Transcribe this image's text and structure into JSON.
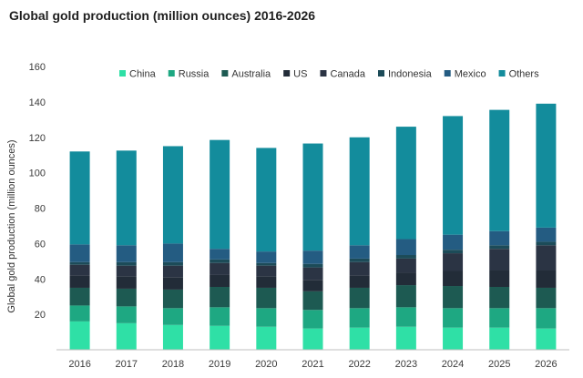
{
  "chart_data": {
    "type": "bar",
    "stacked": true,
    "title": "Global gold production (million ounces) 2016-2026",
    "xlabel": "",
    "ylabel": "Global gold production (million ounces)",
    "ylim": [
      0,
      160
    ],
    "yticks": [
      20,
      40,
      60,
      80,
      100,
      120,
      140,
      160
    ],
    "grid": false,
    "legend_position": "top",
    "categories": [
      "2016",
      "2017",
      "2018",
      "2019",
      "2020",
      "2021",
      "2022",
      "2023",
      "2024",
      "2025",
      "2026"
    ],
    "series": [
      {
        "name": "China",
        "color": "#2fe0a6",
        "values": [
          16,
          15,
          14,
          13.5,
          13,
          12,
          12.5,
          13,
          12.5,
          12.5,
          12
        ]
      },
      {
        "name": "Russia",
        "color": "#1ea882",
        "values": [
          9,
          9.5,
          9.5,
          10.5,
          10.5,
          10.5,
          11,
          11,
          11,
          11,
          11.5
        ]
      },
      {
        "name": "Australia",
        "color": "#1d5a52",
        "values": [
          10,
          10,
          10.5,
          11.5,
          11.5,
          10.5,
          11.5,
          12.5,
          12.5,
          12,
          11.5
        ]
      },
      {
        "name": "US",
        "color": "#222c38",
        "values": [
          7,
          7,
          7,
          7,
          6.5,
          6.5,
          7,
          7,
          8.5,
          9.5,
          10
        ]
      },
      {
        "name": "Canada",
        "color": "#2b3444",
        "values": [
          6,
          6,
          6.5,
          6.5,
          6,
          7,
          7.5,
          8,
          10,
          12,
          14
        ]
      },
      {
        "name": "Indonesia",
        "color": "#1c4b58",
        "values": [
          1.5,
          2,
          2,
          2,
          1.5,
          2,
          2,
          2,
          2,
          2,
          2
        ]
      },
      {
        "name": "Mexico",
        "color": "#245c82",
        "values": [
          10,
          9.5,
          10.5,
          6,
          6.5,
          7.5,
          7.5,
          9,
          8.5,
          8,
          8
        ]
      },
      {
        "name": "Others",
        "color": "#138c9c",
        "values": [
          52.5,
          53.5,
          55,
          61.5,
          58.5,
          60.5,
          61,
          63.5,
          67,
          68.5,
          70
        ]
      }
    ]
  }
}
